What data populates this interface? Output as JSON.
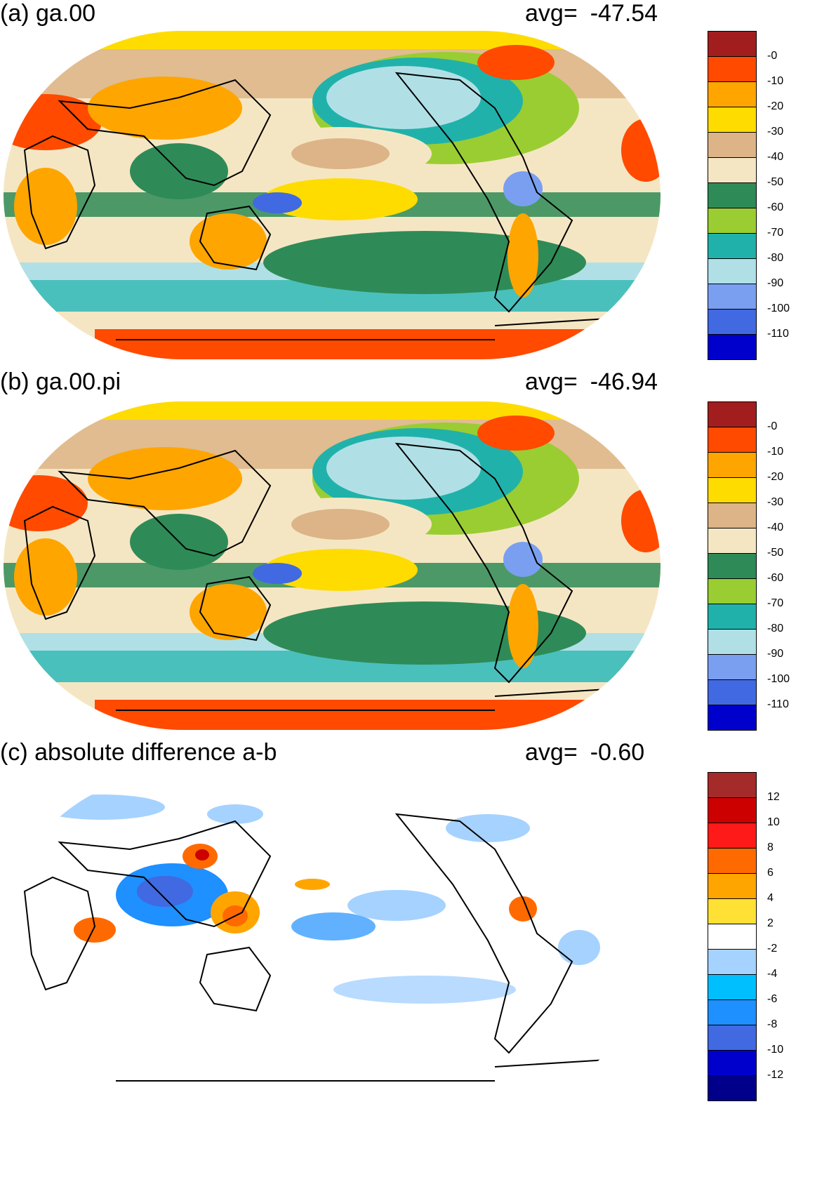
{
  "panels": [
    {
      "id": "a",
      "title": "(a) ga.00",
      "avg_label": "avg=",
      "avg_value": "-47.54",
      "legend_labels": [
        "-0",
        "-10",
        "-20",
        "-30",
        "-40",
        "-50",
        "-60",
        "-70",
        "-80",
        "-90",
        "-100",
        "-110"
      ],
      "legend_colors": [
        "#a21e1e",
        "#ff4a00",
        "#ffa500",
        "#ffdc00",
        "#dcb487",
        "#f5e6c3",
        "#2e8b57",
        "#9acd32",
        "#20b2aa",
        "#b0e0e6",
        "#7b9ff0",
        "#4169e1",
        "#0000cd"
      ]
    },
    {
      "id": "b",
      "title": "(b) ga.00.pi",
      "avg_label": "avg=",
      "avg_value": "-46.94",
      "legend_labels": [
        "-0",
        "-10",
        "-20",
        "-30",
        "-40",
        "-50",
        "-60",
        "-70",
        "-80",
        "-90",
        "-100",
        "-110"
      ],
      "legend_colors": [
        "#a21e1e",
        "#ff4a00",
        "#ffa500",
        "#ffdc00",
        "#dcb487",
        "#f5e6c3",
        "#2e8b57",
        "#9acd32",
        "#20b2aa",
        "#b0e0e6",
        "#7b9ff0",
        "#4169e1",
        "#0000cd"
      ]
    },
    {
      "id": "c",
      "title": "(c) absolute difference a-b",
      "avg_label": "avg=",
      "avg_value": "-0.60",
      "legend_labels": [
        "12",
        "10",
        "8",
        "6",
        "4",
        "2",
        "-2",
        "-4",
        "-6",
        "-8",
        "-10",
        "-12"
      ],
      "legend_colors": [
        "#a52a2a",
        "#cd0000",
        "#ff1a1a",
        "#ff6a00",
        "#ffa500",
        "#ffe135",
        "#ffffff",
        "#a6d2ff",
        "#00bfff",
        "#1e90ff",
        "#4169e1",
        "#0000cd",
        "#00008b"
      ]
    }
  ]
}
